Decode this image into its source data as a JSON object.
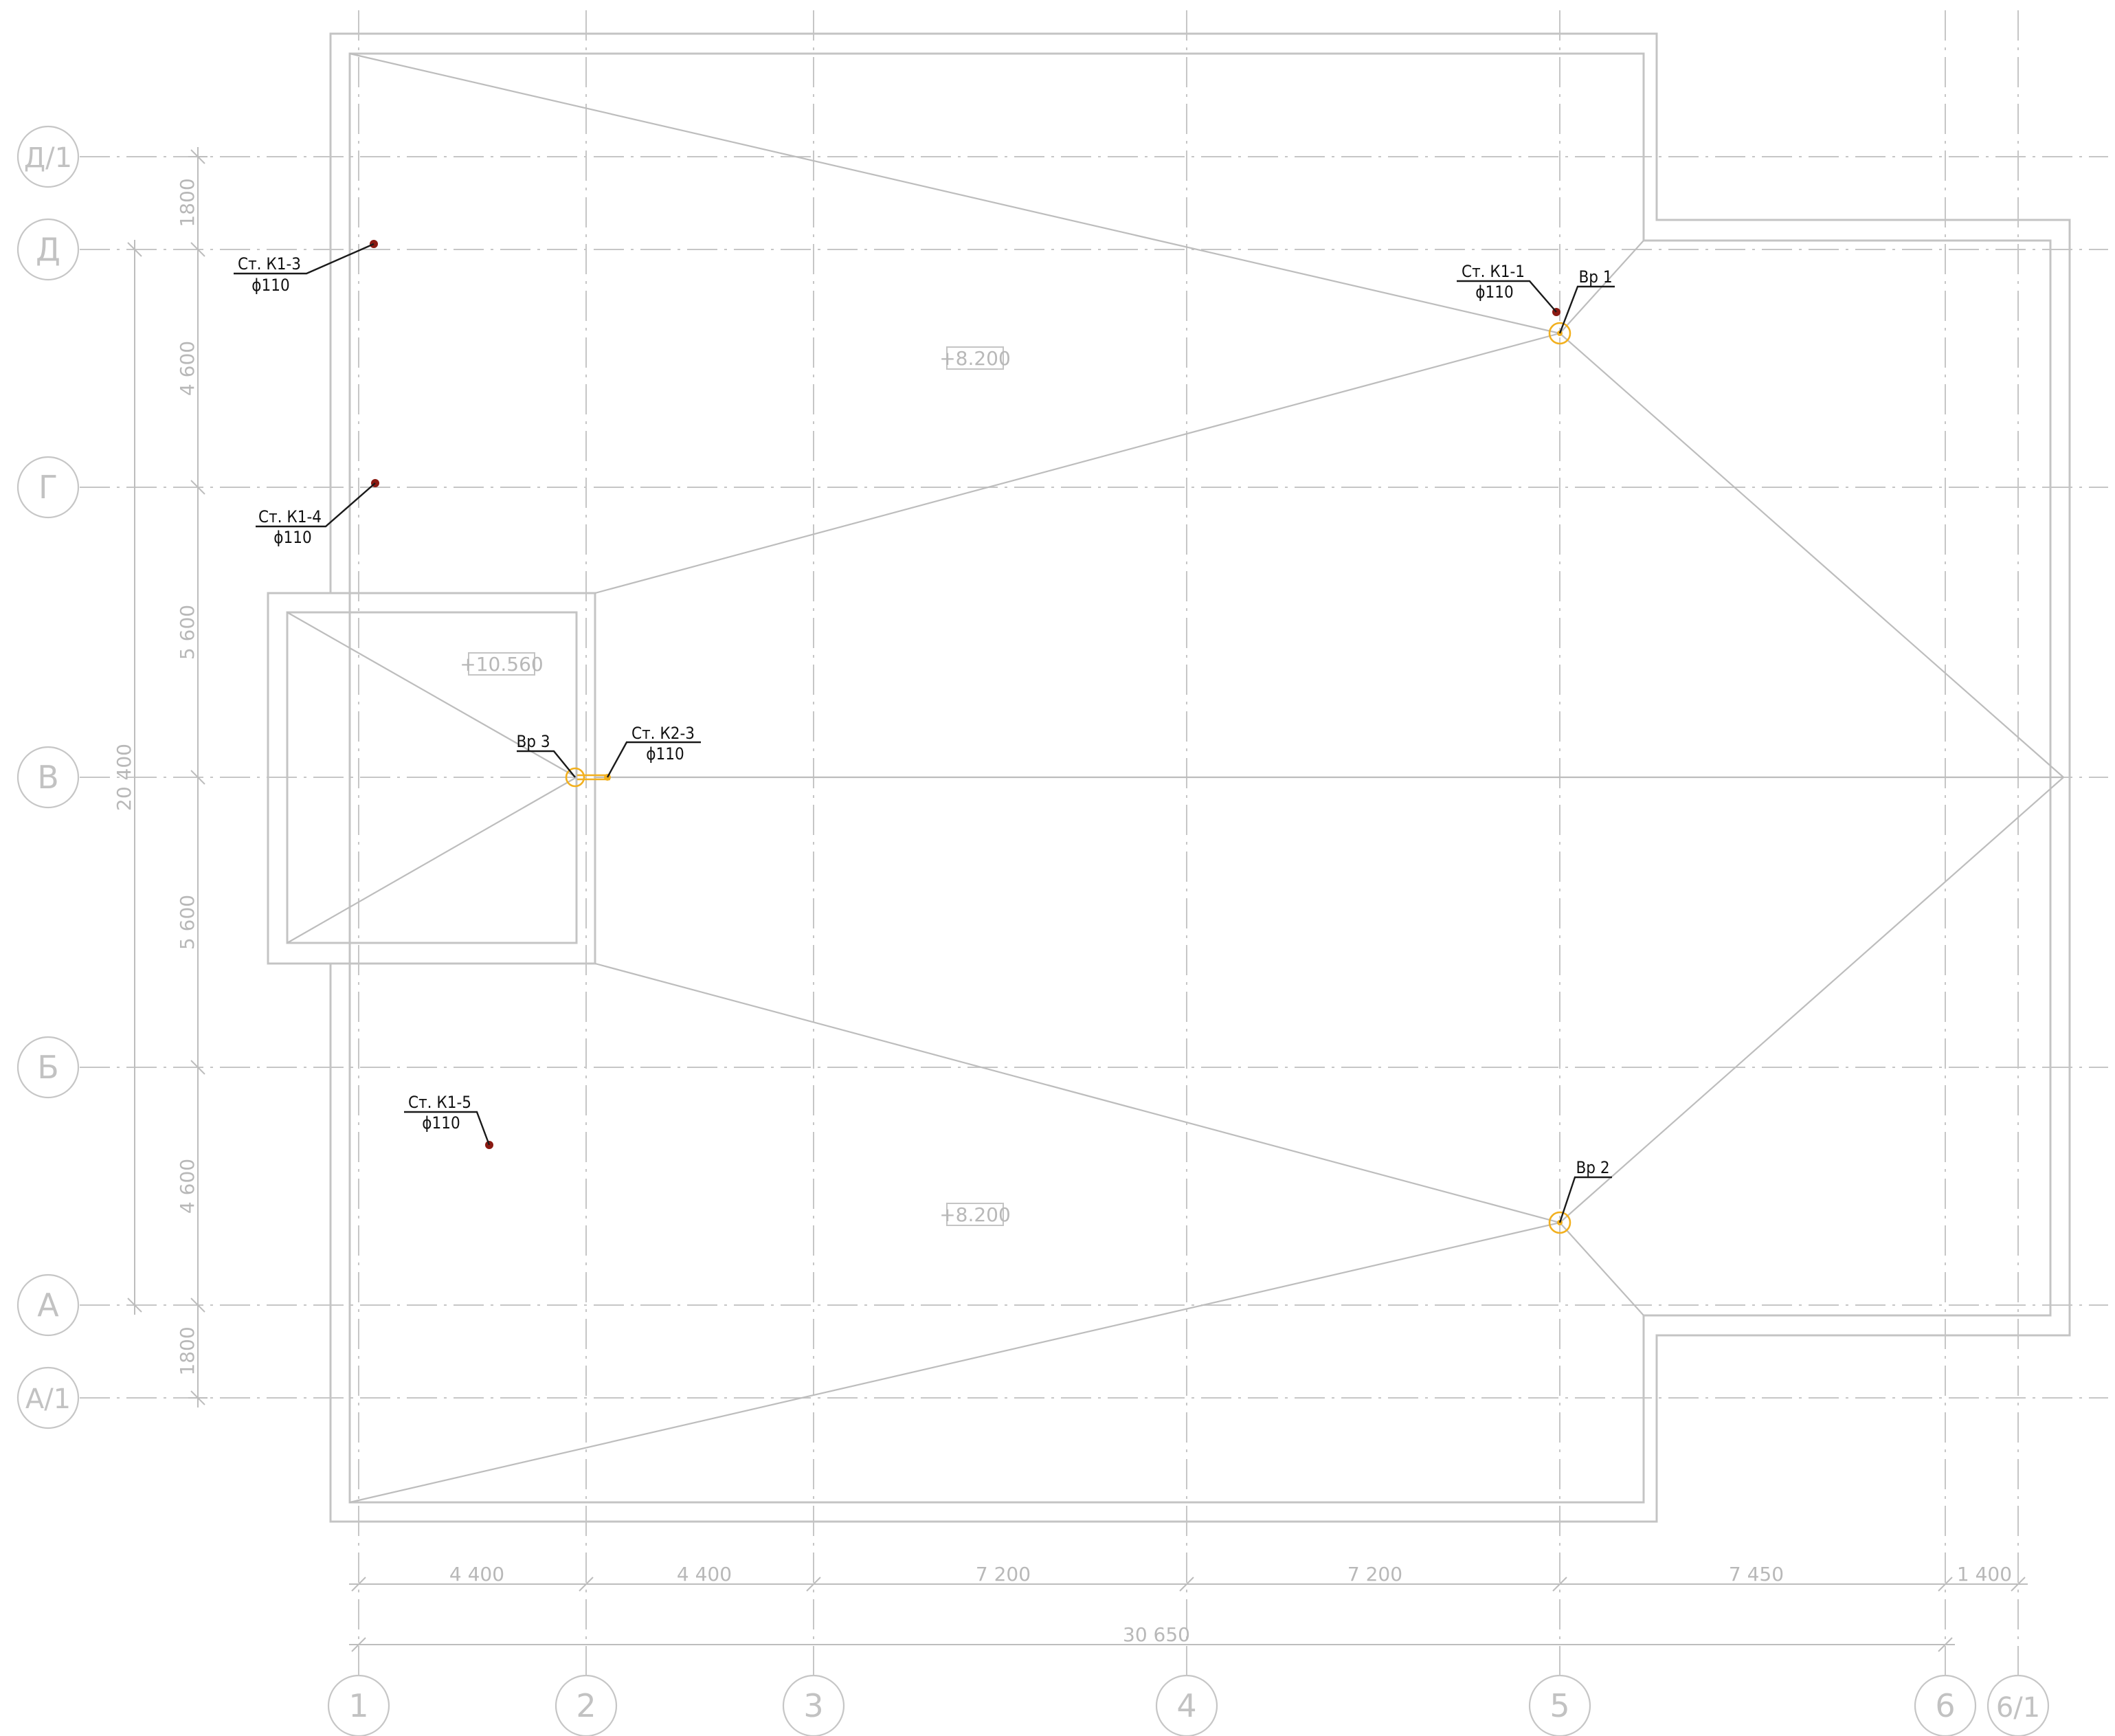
{
  "axes_vertical": [
    {
      "label": "1"
    },
    {
      "label": "2"
    },
    {
      "label": "3"
    },
    {
      "label": "4"
    },
    {
      "label": "5"
    },
    {
      "label": "6"
    },
    {
      "label": "6/1"
    }
  ],
  "axes_horizontal": [
    {
      "label": "Д/1"
    },
    {
      "label": "Д"
    },
    {
      "label": "Г"
    },
    {
      "label": "В"
    },
    {
      "label": "Б"
    },
    {
      "label": "А"
    },
    {
      "label": "А/1"
    }
  ],
  "dimensions_horizontal": [
    "4 400",
    "4 400",
    "7 200",
    "7 200",
    "7 450",
    "1 400"
  ],
  "dimension_total_horizontal": "30 650",
  "dimensions_vertical": [
    "1800",
    "4 600",
    "5 600",
    "5 600",
    "4 600",
    "1800"
  ],
  "dimension_total_vertical": "20 400",
  "levels": [
    "+8.200",
    "+10.560",
    "+8.200"
  ],
  "tags": {
    "k1_3": {
      "name": "Ст. К1-3",
      "size": "ϕ110"
    },
    "k1_4": {
      "name": "Ст. К1-4",
      "size": "ϕ110"
    },
    "k1_1": {
      "name": "Ст. К1-1",
      "size": "ϕ110"
    },
    "k2_3": {
      "name": "Ст. К2-3",
      "size": "ϕ110"
    },
    "k1_5": {
      "name": "Ст. К1-5",
      "size": "ϕ110"
    },
    "vr1": {
      "name": "Вр 1"
    },
    "vr2": {
      "name": "Вр 2"
    },
    "vr3": {
      "name": "Вр 3"
    }
  },
  "colors": {
    "riser": "#8a1a12",
    "funnel": "#f2b01e",
    "linework": "#c4c4c4",
    "annotation": "#111111"
  }
}
